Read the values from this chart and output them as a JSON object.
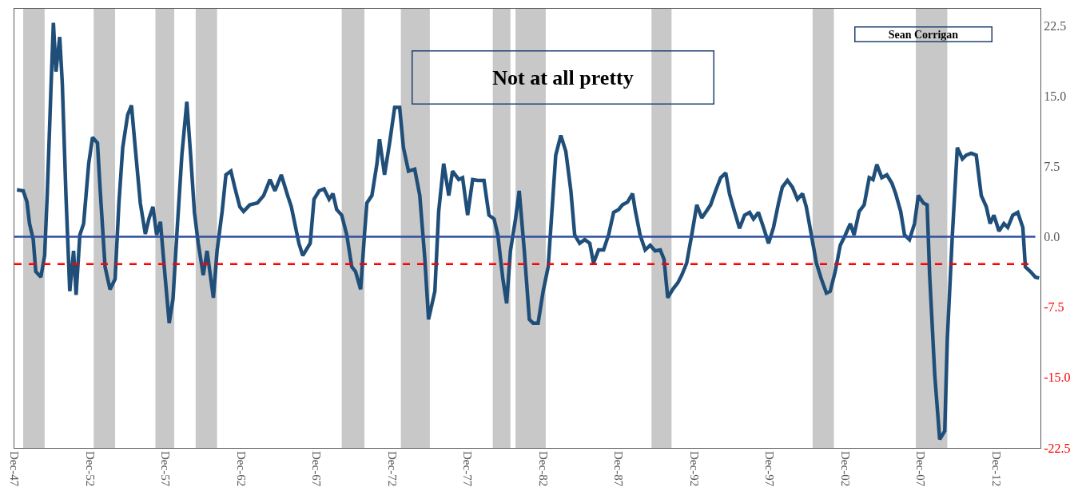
{
  "chart_data": {
    "type": "line",
    "annotations": [
      "Not at all pretty",
      "Sean Corrigan"
    ],
    "x": [
      "1948-02",
      "1948-07",
      "1948-10",
      "1948-12",
      "1949-03",
      "1949-05",
      "1949-09",
      "1949-12",
      "1950-02",
      "1950-05",
      "1950-07",
      "1950-09",
      "1950-12",
      "1951-02",
      "1951-05",
      "1951-08",
      "1951-11",
      "1952-01",
      "1952-04",
      "1952-07",
      "1952-11",
      "1953-02",
      "1953-06",
      "1953-08",
      "1953-12",
      "1954-04",
      "1954-08",
      "1954-11",
      "1955-02",
      "1955-06",
      "1955-09",
      "1955-12",
      "1956-04",
      "1956-08",
      "1956-11",
      "1957-02",
      "1957-05",
      "1957-08",
      "1957-11",
      "1958-03",
      "1958-06",
      "1958-09",
      "1959-01",
      "1959-05",
      "1959-08",
      "1959-11",
      "1960-02",
      "1960-06",
      "1960-09",
      "1961-02",
      "1961-05",
      "1961-09",
      "1961-12",
      "1962-04",
      "1962-07",
      "1962-11",
      "1963-02",
      "1963-07",
      "1964-01",
      "1964-06",
      "1964-11",
      "1965-03",
      "1965-08",
      "1966-01",
      "1966-04",
      "1966-10",
      "1967-01",
      "1967-07",
      "1967-10",
      "1968-02",
      "1968-06",
      "1968-10",
      "1969-01",
      "1969-04",
      "1969-08",
      "1969-12",
      "1970-04",
      "1970-07",
      "1970-11",
      "1971-02",
      "1971-04",
      "1971-08",
      "1971-12",
      "1972-02",
      "1972-06",
      "1972-10",
      "1973-02",
      "1973-06",
      "1973-09",
      "1974-01",
      "1974-06",
      "1974-10",
      "1975-02",
      "1975-05",
      "1975-10",
      "1976-01",
      "1976-05",
      "1976-09",
      "1976-12",
      "1977-05",
      "1977-08",
      "1977-12",
      "1978-04",
      "1978-08",
      "1979-01",
      "1979-05",
      "1979-09",
      "1979-12",
      "1980-04",
      "1980-07",
      "1980-10",
      "1981-02",
      "1981-05",
      "1981-09",
      "1982-01",
      "1982-04",
      "1982-08",
      "1982-12",
      "1983-04",
      "1983-07",
      "1983-10",
      "1984-02",
      "1984-06",
      "1984-10",
      "1985-01",
      "1985-05",
      "1985-09",
      "1986-01",
      "1986-04",
      "1986-08",
      "1986-12",
      "1987-04",
      "1987-08",
      "1987-12",
      "1988-03",
      "1988-07",
      "1988-11",
      "1989-01",
      "1989-05",
      "1989-09",
      "1990-01",
      "1990-05",
      "1990-09",
      "1990-12",
      "1991-03",
      "1991-07",
      "1991-11",
      "1992-02",
      "1992-06",
      "1992-10",
      "1993-02",
      "1993-06",
      "1993-09",
      "1994-01",
      "1994-05",
      "1994-09",
      "1995-01",
      "1995-04",
      "1995-08",
      "1995-12",
      "1996-04",
      "1996-08",
      "1996-11",
      "1997-03",
      "1997-07",
      "1997-11",
      "1998-03",
      "1998-07",
      "1998-10",
      "1999-02",
      "1999-06",
      "1999-10",
      "2000-02",
      "2000-05",
      "2000-09",
      "2001-01",
      "2001-05",
      "2001-09",
      "2001-12",
      "2002-04",
      "2002-08",
      "2002-12",
      "2003-04",
      "2003-07",
      "2003-11",
      "2004-03",
      "2004-07",
      "2004-10",
      "2005-01",
      "2005-05",
      "2005-09",
      "2006-01",
      "2006-04",
      "2006-08",
      "2006-11",
      "2007-03",
      "2007-07",
      "2007-10",
      "2008-02",
      "2008-05",
      "2008-07",
      "2008-11",
      "2009-03",
      "2009-07",
      "2009-09",
      "2010-01",
      "2010-05",
      "2010-09",
      "2010-12",
      "2011-04",
      "2011-08",
      "2011-12",
      "2012-04",
      "2012-07",
      "2012-10",
      "2013-02",
      "2013-06",
      "2013-09",
      "2014-01",
      "2014-05",
      "2014-09",
      "2014-11",
      "2015-03",
      "2015-07",
      "2015-10"
    ],
    "series": [
      {
        "color": "#1f4e79",
        "values": [
          5.0,
          4.9,
          3.7,
          1.4,
          -0.3,
          -3.7,
          -4.3,
          -2.0,
          4.4,
          15.5,
          22.8,
          17.6,
          21.3,
          16.4,
          4.4,
          -5.8,
          -1.5,
          -6.2,
          0.2,
          1.4,
          7.8,
          10.6,
          10.0,
          5.3,
          -3.2,
          -5.6,
          -4.5,
          3.6,
          9.5,
          13.0,
          14.0,
          9.5,
          3.6,
          0.3,
          2.0,
          3.2,
          0.2,
          1.6,
          -3.2,
          -9.2,
          -6.6,
          0.2,
          8.7,
          14.4,
          8.7,
          2.6,
          -0.7,
          -4.1,
          -1.5,
          -6.5,
          -1.5,
          2.7,
          6.6,
          7.0,
          5.3,
          3.2,
          2.7,
          3.4,
          3.6,
          4.4,
          6.1,
          4.9,
          6.6,
          4.4,
          3.2,
          -0.7,
          -2.0,
          -0.7,
          4.0,
          4.9,
          5.1,
          4.0,
          4.6,
          2.9,
          2.3,
          0.2,
          -3.2,
          -3.7,
          -5.6,
          0.2,
          3.6,
          4.4,
          7.8,
          10.4,
          6.6,
          10.0,
          13.8,
          13.8,
          9.5,
          7.0,
          7.2,
          4.4,
          -2.4,
          -8.8,
          -5.8,
          2.7,
          7.8,
          4.4,
          7.0,
          6.1,
          6.3,
          2.3,
          6.1,
          6.0,
          6.0,
          2.3,
          1.9,
          0.2,
          -4.5,
          -7.1,
          -1.5,
          1.9,
          4.9,
          -1.5,
          -8.8,
          -9.2,
          -9.2,
          -5.8,
          -3.2,
          2.7,
          8.7,
          10.8,
          9.1,
          4.9,
          0.2,
          -0.7,
          -0.3,
          -0.7,
          -2.8,
          -1.4,
          -1.4,
          0.2,
          2.6,
          2.9,
          3.4,
          3.7,
          4.6,
          2.9,
          0.2,
          -1.4,
          -0.9,
          -1.5,
          -1.4,
          -2.4,
          -6.5,
          -5.6,
          -4.9,
          -4.1,
          -2.8,
          0.2,
          3.4,
          2.0,
          2.6,
          3.4,
          4.9,
          6.3,
          6.8,
          4.6,
          2.7,
          0.9,
          2.3,
          2.6,
          1.9,
          2.6,
          1.0,
          -0.7,
          1.0,
          3.6,
          5.3,
          6.0,
          5.3,
          4.0,
          4.6,
          3.2,
          0.2,
          -2.8,
          -4.5,
          -6.0,
          -5.8,
          -3.7,
          -0.9,
          0.2,
          1.4,
          0.2,
          2.7,
          3.4,
          6.3,
          6.1,
          7.7,
          6.3,
          6.6,
          5.7,
          4.6,
          2.7,
          0.2,
          -0.3,
          1.4,
          4.4,
          3.6,
          3.4,
          -4.1,
          -14.7,
          -21.6,
          -20.7,
          -10.9,
          0.2,
          9.5,
          8.3,
          8.7,
          8.9,
          8.7,
          4.4,
          3.2,
          1.4,
          2.3,
          0.6,
          1.4,
          1.0,
          2.3,
          2.6,
          1.0,
          -3.2,
          -3.7,
          -4.3,
          -4.4
        ]
      }
    ],
    "xlim": [
      "1947-12",
      "2015-11"
    ],
    "xticks": [
      {
        "value": "1947-12",
        "label": "Dec-47"
      },
      {
        "value": "1952-12",
        "label": "Dec-52"
      },
      {
        "value": "1957-12",
        "label": "Dec-57"
      },
      {
        "value": "1962-12",
        "label": "Dec-62"
      },
      {
        "value": "1967-12",
        "label": "Dec-67"
      },
      {
        "value": "1972-12",
        "label": "Dec-72"
      },
      {
        "value": "1977-12",
        "label": "Dec-77"
      },
      {
        "value": "1982-12",
        "label": "Dec-82"
      },
      {
        "value": "1987-12",
        "label": "Dec-87"
      },
      {
        "value": "1992-12",
        "label": "Dec-92"
      },
      {
        "value": "1997-12",
        "label": "Dec-97"
      },
      {
        "value": "2002-12",
        "label": "Dec-02"
      },
      {
        "value": "2007-12",
        "label": "Dec-07"
      },
      {
        "value": "2012-12",
        "label": "Dec-12"
      }
    ],
    "ylim": [
      -22.5,
      24.3
    ],
    "yticks": [
      {
        "value": 22.5,
        "label": "22.5"
      },
      {
        "value": 15,
        "label": "15.0"
      },
      {
        "value": 7.5,
        "label": "7.5"
      },
      {
        "value": 0,
        "label": "0.0"
      },
      {
        "value": -7.5,
        "label": "-7.5"
      },
      {
        "value": -15,
        "label": "-15.0"
      },
      {
        "value": -22.5,
        "label": "-22.5"
      }
    ],
    "ref_lines": [
      {
        "axis": "y",
        "value": 0,
        "color": "#2f52a0",
        "line_style": "solid"
      },
      {
        "axis": "y",
        "value": -2.9,
        "color": "#ff0000",
        "line_style": "dashed"
      }
    ],
    "bands": [
      {
        "axis": "x",
        "from": "1948-07",
        "to": "1949-12",
        "color": "#c8c8c8"
      },
      {
        "axis": "x",
        "from": "1953-03",
        "to": "1954-08",
        "color": "#c8c8c8"
      },
      {
        "axis": "x",
        "from": "1957-04",
        "to": "1958-07",
        "color": "#c8c8c8"
      },
      {
        "axis": "x",
        "from": "1959-12",
        "to": "1961-05",
        "color": "#c8c8c8"
      },
      {
        "axis": "x",
        "from": "1969-08",
        "to": "1971-02",
        "color": "#c8c8c8"
      },
      {
        "axis": "x",
        "from": "1973-07",
        "to": "1975-06",
        "color": "#c8c8c8"
      },
      {
        "axis": "x",
        "from": "1979-08",
        "to": "1980-10",
        "color": "#c8c8c8"
      },
      {
        "axis": "x",
        "from": "1981-02",
        "to": "1983-02",
        "color": "#c8c8c8"
      },
      {
        "axis": "x",
        "from": "1990-02",
        "to": "1991-06",
        "color": "#c8c8c8"
      },
      {
        "axis": "x",
        "from": "2000-10",
        "to": "2002-03",
        "color": "#c8c8c8"
      },
      {
        "axis": "x",
        "from": "2007-08",
        "to": "2009-09",
        "color": "#c8c8c8"
      }
    ],
    "grid": false,
    "legend": false,
    "marker": "none",
    "line_style": "solid"
  }
}
